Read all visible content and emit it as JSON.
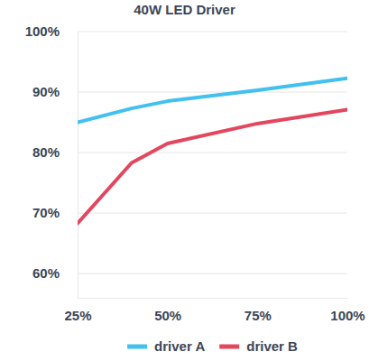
{
  "chart_data": {
    "type": "line",
    "title": "40W LED Driver",
    "x": [
      25,
      40,
      50,
      75,
      100
    ],
    "series": [
      {
        "name": "driver A",
        "color": "#42c0ee",
        "values": [
          85,
          87.3,
          88.5,
          90.3,
          92.3
        ]
      },
      {
        "name": "driver B",
        "color": "#e2475e",
        "values": [
          68.3,
          78.3,
          81.5,
          84.8,
          87.1
        ]
      }
    ],
    "xlim": [
      25,
      100
    ],
    "xticks": [
      {
        "value": 25,
        "label": "25%"
      },
      {
        "value": 50,
        "label": "50%"
      },
      {
        "value": 75,
        "label": "75%"
      },
      {
        "value": 100,
        "label": "100%"
      }
    ],
    "ylim": [
      56,
      100
    ],
    "yticks": [
      {
        "value": 60,
        "label": "60%"
      },
      {
        "value": 70,
        "label": "70%"
      },
      {
        "value": 80,
        "label": "80%"
      },
      {
        "value": 90,
        "label": "90%"
      },
      {
        "value": 100,
        "label": "100%"
      }
    ],
    "grid": true,
    "legend": "bottom"
  }
}
